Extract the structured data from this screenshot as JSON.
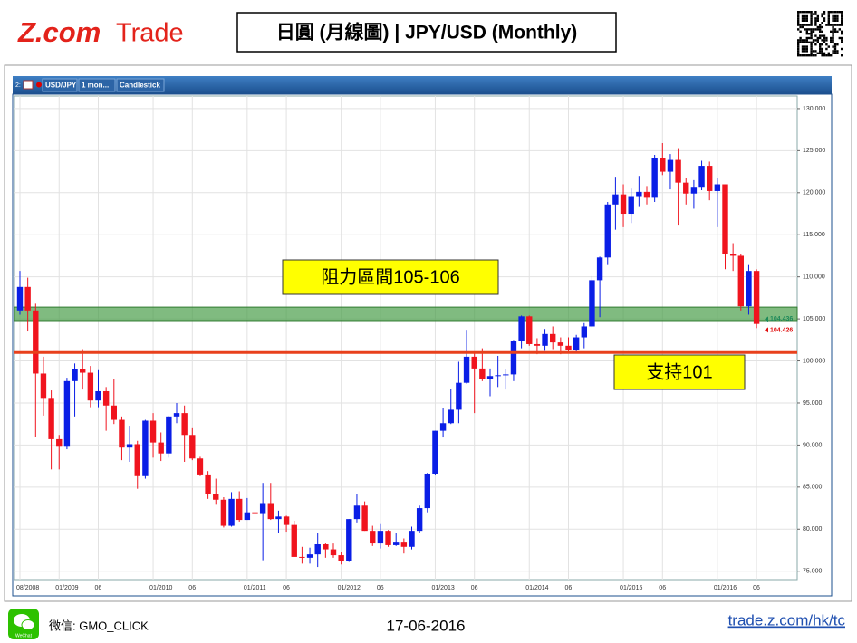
{
  "header": {
    "logo_main": "Z.com",
    "logo_sub": "Trade",
    "title": "日圓 (月線圖) | JPY/USD (Monthly)"
  },
  "toolbar": {
    "prefix": "2:",
    "tabs": [
      "USD/JPY",
      "1 mon...",
      "Candlestick"
    ]
  },
  "footer": {
    "wechat_icon": "WeChat",
    "wechat": "微信: GMO_CLICK",
    "date": "17-06-2016",
    "link": "trade.z.com/hk/tc"
  },
  "chart_data": {
    "type": "candlestick",
    "categories": [
      "08/2008",
      null,
      null,
      null,
      null,
      "01/2009",
      null,
      null,
      null,
      null,
      "06",
      null,
      null,
      null,
      null,
      null,
      null,
      "01/2010",
      null,
      null,
      null,
      null,
      "06",
      null,
      null,
      null,
      null,
      null,
      null,
      "01/2011",
      null,
      null,
      null,
      null,
      "06",
      null,
      null,
      null,
      null,
      null,
      null,
      "01/2012",
      null,
      null,
      null,
      null,
      "06",
      null,
      null,
      null,
      null,
      null,
      null,
      "01/2013",
      null,
      null,
      null,
      null,
      "06",
      null,
      null,
      null,
      null,
      null,
      null,
      "01/2014",
      null,
      null,
      null,
      null,
      "06",
      null,
      null,
      null,
      null,
      null,
      null,
      "01/2015",
      null,
      null,
      null,
      null,
      "06",
      null,
      null,
      null,
      null,
      null,
      null,
      "01/2016",
      null,
      null,
      null,
      null,
      "06"
    ],
    "open": [
      106.0,
      108.8,
      106.0,
      98.5,
      95.5,
      90.7,
      89.8,
      97.6,
      99.0,
      98.6,
      95.3,
      96.4,
      94.7,
      93.0,
      89.7,
      90.1,
      86.3,
      92.9,
      90.3,
      89.0,
      93.4,
      93.8,
      91.2,
      88.4,
      86.5,
      84.2,
      83.5,
      80.4,
      83.6,
      81.1,
      82.0,
      81.8,
      83.1,
      81.2,
      81.5,
      80.5,
      76.7,
      76.6,
      77.0,
      78.2,
      77.6,
      76.9,
      76.2,
      81.2,
      82.8,
      79.8,
      78.3,
      79.8,
      78.1,
      78.4,
      77.9,
      79.8,
      82.5,
      86.6,
      91.7,
      92.6,
      94.2,
      97.4,
      100.5,
      99.1,
      97.9,
      98.2,
      98.3,
      98.4,
      102.4,
      105.3,
      102.0,
      101.8,
      103.2,
      102.2,
      101.8,
      101.3,
      102.8,
      104.1,
      109.6,
      112.3,
      118.6,
      119.8,
      117.5,
      119.6,
      120.1,
      119.4,
      124.1,
      122.5,
      123.9,
      121.2,
      119.9,
      120.6,
      123.2,
      120.2,
      121.0,
      112.7,
      112.5,
      106.5,
      110.7
    ],
    "high": [
      110.7,
      109.9,
      106.8,
      100.5,
      96.5,
      91.2,
      98.0,
      99.7,
      101.4,
      99.4,
      98.9,
      96.9,
      97.8,
      93.4,
      92.3,
      90.5,
      93.0,
      93.8,
      91.5,
      93.5,
      95.0,
      94.7,
      92.0,
      88.6,
      86.9,
      86.0,
      83.8,
      84.4,
      84.5,
      83.7,
      84.0,
      85.5,
      85.5,
      82.2,
      81.6,
      81.0,
      77.9,
      77.8,
      79.5,
      78.3,
      78.3,
      77.3,
      81.2,
      84.2,
      83.3,
      80.4,
      80.6,
      79.9,
      79.6,
      78.9,
      80.3,
      82.8,
      86.7,
      91.7,
      94.4,
      96.7,
      99.9,
      103.7,
      100.9,
      101.5,
      99.1,
      100.6,
      99.0,
      102.5,
      105.4,
      105.4,
      102.7,
      103.8,
      104.1,
      102.8,
      102.8,
      103.1,
      104.5,
      110.1,
      112.4,
      118.9,
      121.9,
      121.0,
      120.5,
      122.0,
      120.8,
      124.5,
      125.9,
      124.6,
      125.3,
      121.7,
      121.5,
      123.8,
      123.7,
      121.7,
      121.0,
      114.0,
      112.7,
      111.4,
      110.9
    ],
    "low": [
      105.5,
      103.5,
      90.9,
      93.5,
      87.1,
      87.1,
      89.5,
      93.4,
      96.6,
      94.5,
      94.5,
      91.7,
      92.5,
      88.2,
      88.0,
      84.8,
      86.0,
      88.5,
      88.1,
      88.5,
      92.6,
      88.0,
      88.2,
      86.3,
      83.6,
      82.9,
      80.2,
      80.3,
      80.9,
      81.1,
      81.2,
      76.3,
      81.1,
      79.6,
      79.7,
      76.7,
      75.9,
      75.9,
      75.5,
      76.6,
      76.6,
      75.8,
      76.1,
      80.8,
      79.8,
      78.0,
      77.7,
      77.9,
      78.0,
      77.1,
      77.6,
      79.5,
      82.0,
      86.5,
      90.9,
      92.5,
      92.6,
      97.3,
      93.8,
      97.6,
      95.8,
      96.9,
      96.6,
      97.6,
      101.5,
      101.8,
      100.8,
      101.2,
      101.4,
      100.8,
      101.1,
      101.1,
      101.5,
      104.0,
      105.2,
      111.4,
      115.6,
      115.9,
      116.4,
      118.3,
      118.6,
      118.9,
      122.1,
      120.4,
      116.2,
      118.6,
      118.1,
      120.3,
      119.1,
      115.9,
      110.9,
      110.7,
      106.0,
      105.5,
      103.9
    ],
    "close": [
      108.8,
      106.0,
      98.5,
      95.5,
      90.7,
      89.8,
      97.6,
      99.0,
      98.6,
      95.3,
      96.4,
      94.7,
      93.0,
      89.7,
      90.1,
      86.3,
      92.9,
      90.3,
      89.0,
      93.4,
      93.8,
      91.2,
      88.4,
      86.5,
      84.2,
      83.5,
      80.4,
      83.6,
      81.1,
      82.0,
      81.8,
      83.1,
      81.2,
      81.5,
      80.5,
      76.7,
      76.6,
      77.0,
      78.2,
      77.6,
      76.9,
      76.2,
      81.2,
      82.8,
      79.8,
      78.3,
      79.8,
      78.1,
      78.4,
      77.9,
      79.8,
      82.5,
      86.6,
      91.7,
      92.6,
      94.2,
      97.4,
      100.5,
      99.1,
      97.9,
      98.2,
      98.3,
      98.4,
      102.4,
      105.3,
      102.0,
      101.8,
      103.2,
      102.2,
      101.8,
      101.3,
      102.8,
      104.1,
      109.6,
      112.3,
      118.6,
      119.8,
      117.5,
      119.6,
      120.1,
      119.4,
      124.1,
      122.5,
      123.9,
      121.2,
      119.9,
      120.6,
      123.2,
      120.2,
      121.0,
      112.7,
      112.5,
      106.5,
      110.7,
      104.4
    ],
    "up_color": "#0a1ee6",
    "down_color": "#f0141e",
    "ylim": [
      74,
      131.5
    ],
    "yticks": [
      {
        "value": 75,
        "label": "75.000"
      },
      {
        "value": 80,
        "label": "80.000"
      },
      {
        "value": 85,
        "label": "85.000"
      },
      {
        "value": 90,
        "label": "90.000"
      },
      {
        "value": 95,
        "label": "95.000"
      },
      {
        "value": 100,
        "label": "100.000"
      },
      {
        "value": 105,
        "label": "105.000"
      },
      {
        "value": 110,
        "label": "110.000"
      },
      {
        "value": 115,
        "label": "115.000"
      },
      {
        "value": 120,
        "label": "120.000"
      },
      {
        "value": 125,
        "label": "125.000"
      },
      {
        "value": 130,
        "label": "130.000"
      }
    ],
    "grid": true,
    "resistance_zone": [
      104.8,
      106.4
    ],
    "zone_color": "#4a9e4a",
    "support_level": 101,
    "support_color": "#e8401c",
    "annotations": [
      {
        "text": "阻力區間105-106"
      },
      {
        "text": "支持101"
      }
    ],
    "last_prices": [
      {
        "value": 104.436,
        "color": "#1e8a5a"
      },
      {
        "value": 104.426,
        "color": "#e01010"
      }
    ]
  }
}
